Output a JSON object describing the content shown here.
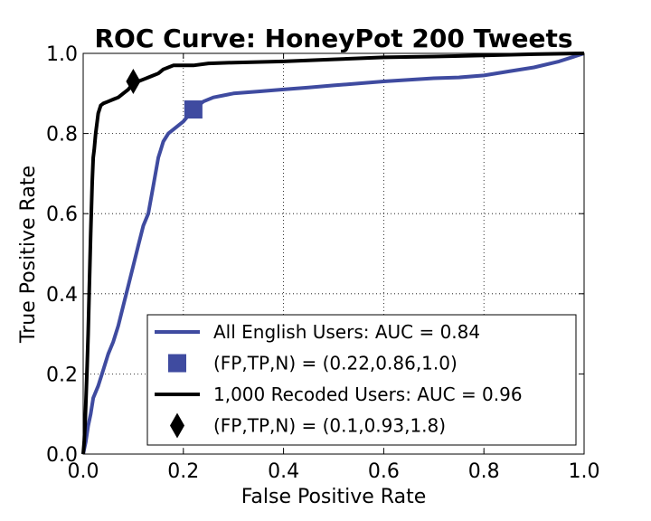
{
  "chart_data": {
    "type": "line",
    "title": "ROC Curve: HoneyPot 200 Tweets",
    "xlabel": "False Positive Rate",
    "ylabel": "True Positive Rate",
    "xlim": [
      0.0,
      1.0
    ],
    "ylim": [
      0.0,
      1.0
    ],
    "xticks": [
      "0.0",
      "0.2",
      "0.4",
      "0.6",
      "0.8",
      "1.0"
    ],
    "yticks": [
      "0.0",
      "0.2",
      "0.4",
      "0.6",
      "0.8",
      "1.0"
    ],
    "grid": true,
    "legend_position": "lower-right",
    "series": [
      {
        "name": "All English Users: AUC = 0.84",
        "color": "#3f4ba0",
        "x": [
          0.0,
          0.005,
          0.01,
          0.015,
          0.02,
          0.03,
          0.04,
          0.05,
          0.06,
          0.07,
          0.08,
          0.09,
          0.1,
          0.11,
          0.12,
          0.13,
          0.14,
          0.15,
          0.155,
          0.16,
          0.17,
          0.18,
          0.2,
          0.22,
          0.24,
          0.26,
          0.28,
          0.3,
          0.35,
          0.4,
          0.45,
          0.5,
          0.6,
          0.7,
          0.75,
          0.8,
          0.85,
          0.9,
          0.95,
          1.0
        ],
        "y": [
          0.0,
          0.03,
          0.07,
          0.1,
          0.14,
          0.17,
          0.21,
          0.25,
          0.28,
          0.32,
          0.37,
          0.42,
          0.47,
          0.52,
          0.57,
          0.6,
          0.67,
          0.74,
          0.76,
          0.78,
          0.8,
          0.81,
          0.83,
          0.86,
          0.88,
          0.89,
          0.895,
          0.9,
          0.905,
          0.91,
          0.915,
          0.92,
          0.93,
          0.938,
          0.94,
          0.945,
          0.955,
          0.965,
          0.98,
          1.0
        ]
      },
      {
        "name": "(FP,TP,N) = (0.22,0.86,1.0)",
        "color": "#3f4ba0",
        "marker": "square",
        "x": [
          0.22
        ],
        "y": [
          0.86
        ]
      },
      {
        "name": "1,000 Recoded Users: AUC = 0.96",
        "color": "#000000",
        "x": [
          0.0,
          0.002,
          0.004,
          0.006,
          0.008,
          0.01,
          0.012,
          0.015,
          0.018,
          0.02,
          0.022,
          0.025,
          0.028,
          0.03,
          0.035,
          0.04,
          0.05,
          0.06,
          0.07,
          0.08,
          0.09,
          0.1,
          0.11,
          0.12,
          0.13,
          0.14,
          0.15,
          0.16,
          0.17,
          0.18,
          0.2,
          0.22,
          0.25,
          0.3,
          0.4,
          0.5,
          0.6,
          0.7,
          0.8,
          0.9,
          1.0
        ],
        "y": [
          0.0,
          0.03,
          0.08,
          0.15,
          0.22,
          0.3,
          0.4,
          0.55,
          0.68,
          0.74,
          0.76,
          0.8,
          0.83,
          0.85,
          0.87,
          0.875,
          0.88,
          0.885,
          0.89,
          0.9,
          0.91,
          0.925,
          0.93,
          0.935,
          0.94,
          0.945,
          0.95,
          0.96,
          0.965,
          0.97,
          0.97,
          0.97,
          0.975,
          0.977,
          0.98,
          0.985,
          0.99,
          0.992,
          0.995,
          0.998,
          1.0
        ]
      },
      {
        "name": "(FP,TP,N) = (0.1,0.93,1.8)",
        "color": "#000000",
        "marker": "diamond",
        "x": [
          0.1
        ],
        "y": [
          0.93
        ]
      }
    ]
  }
}
